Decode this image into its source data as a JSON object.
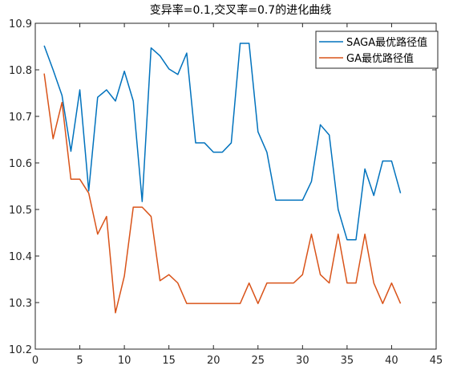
{
  "chart_data": {
    "type": "line",
    "title": "变异率=0.1,交叉率=0.7的进化曲线",
    "xlabel": "",
    "ylabel": "",
    "xlim": [
      0,
      45
    ],
    "ylim": [
      10.2,
      10.9
    ],
    "xticks": [
      0,
      5,
      10,
      15,
      20,
      25,
      30,
      35,
      40,
      45
    ],
    "yticks": [
      10.2,
      10.3,
      10.4,
      10.5,
      10.6,
      10.7,
      10.8,
      10.9
    ],
    "grid": false,
    "legend_position": "top-right",
    "x": [
      1,
      2,
      3,
      4,
      5,
      6,
      7,
      8,
      9,
      10,
      11,
      12,
      13,
      14,
      15,
      16,
      17,
      18,
      19,
      20,
      21,
      22,
      23,
      24,
      25,
      26,
      27,
      28,
      29,
      30,
      31,
      32,
      33,
      34,
      35,
      36,
      37,
      38,
      39,
      40,
      41
    ],
    "series": [
      {
        "name": "SAGA最优路径值",
        "color": "#0072BD",
        "values": [
          10.852,
          10.8,
          10.745,
          10.625,
          10.757,
          10.54,
          10.741,
          10.757,
          10.733,
          10.797,
          10.733,
          10.517,
          10.847,
          10.83,
          10.802,
          10.79,
          10.836,
          10.643,
          10.643,
          10.623,
          10.623,
          10.643,
          10.857,
          10.857,
          10.667,
          10.623,
          10.52,
          10.52,
          10.52,
          10.52,
          10.56,
          10.682,
          10.66,
          10.5,
          10.435,
          10.435,
          10.587,
          10.53,
          10.604,
          10.604,
          10.535
        ]
      },
      {
        "name": "GA最优路径值",
        "color": "#D95319",
        "values": [
          10.792,
          10.652,
          10.73,
          10.565,
          10.565,
          10.535,
          10.447,
          10.485,
          10.278,
          10.357,
          10.505,
          10.505,
          10.485,
          10.347,
          10.36,
          10.342,
          10.298,
          10.298,
          10.298,
          10.298,
          10.298,
          10.298,
          10.298,
          10.342,
          10.298,
          10.342,
          10.342,
          10.342,
          10.342,
          10.36,
          10.447,
          10.36,
          10.342,
          10.447,
          10.342,
          10.342,
          10.447,
          10.342,
          10.298,
          10.342,
          10.298
        ]
      }
    ]
  }
}
